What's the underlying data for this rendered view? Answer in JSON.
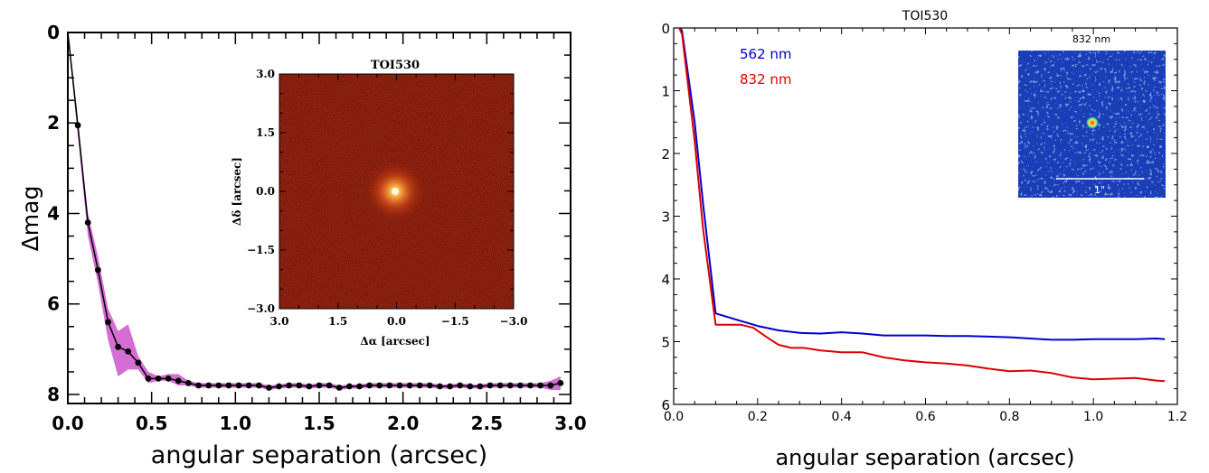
{
  "chart_data": [
    {
      "type": "line",
      "xlabel": "angular separation (arcsec)",
      "ylabel": "Δmag",
      "xlim": [
        0,
        3.0
      ],
      "ylim": [
        8.2,
        0
      ],
      "xticks": [
        0.0,
        0.5,
        1.0,
        1.5,
        2.0,
        2.5,
        3.0
      ],
      "xtick_labels": [
        "0.0",
        "0.5",
        "1.0",
        "1.5",
        "2.0",
        "2.5",
        "3.0"
      ],
      "yticks": [
        0,
        2,
        4,
        6,
        8
      ],
      "ytick_labels": [
        "0",
        "2",
        "4",
        "6",
        "8"
      ],
      "band_color": "#cc55cc",
      "line_color": "#000000",
      "x": [
        0.0,
        0.06,
        0.12,
        0.18,
        0.24,
        0.3,
        0.36,
        0.42,
        0.48,
        0.54,
        0.6,
        0.66,
        0.72,
        0.78,
        0.84,
        0.9,
        0.96,
        1.02,
        1.08,
        1.14,
        1.2,
        1.26,
        1.32,
        1.38,
        1.44,
        1.5,
        1.56,
        1.62,
        1.68,
        1.74,
        1.8,
        1.86,
        1.92,
        1.98,
        2.04,
        2.1,
        2.16,
        2.22,
        2.28,
        2.34,
        2.4,
        2.46,
        2.52,
        2.58,
        2.64,
        2.7,
        2.76,
        2.82,
        2.88,
        2.94
      ],
      "y": [
        0.0,
        2.05,
        4.2,
        5.25,
        6.4,
        6.95,
        7.05,
        7.3,
        7.65,
        7.65,
        7.65,
        7.7,
        7.75,
        7.8,
        7.8,
        7.8,
        7.8,
        7.8,
        7.8,
        7.8,
        7.85,
        7.82,
        7.8,
        7.8,
        7.82,
        7.8,
        7.8,
        7.85,
        7.82,
        7.82,
        7.8,
        7.8,
        7.8,
        7.8,
        7.8,
        7.8,
        7.8,
        7.82,
        7.82,
        7.8,
        7.82,
        7.82,
        7.8,
        7.8,
        7.8,
        7.8,
        7.8,
        7.8,
        7.8,
        7.75
      ],
      "band_upper": [
        0.0,
        1.95,
        4.0,
        4.95,
        6.1,
        6.6,
        6.45,
        7.15,
        7.5,
        7.6,
        7.55,
        7.55,
        7.7,
        7.75,
        7.75,
        7.75,
        7.75,
        7.75,
        7.75,
        7.75,
        7.8,
        7.78,
        7.75,
        7.75,
        7.78,
        7.75,
        7.75,
        7.8,
        7.78,
        7.78,
        7.75,
        7.75,
        7.75,
        7.75,
        7.75,
        7.75,
        7.75,
        7.78,
        7.78,
        7.75,
        7.78,
        7.78,
        7.75,
        7.75,
        7.75,
        7.75,
        7.75,
        7.75,
        7.7,
        7.6
      ],
      "band_lower": [
        0.1,
        2.3,
        4.5,
        5.55,
        6.8,
        7.6,
        7.45,
        7.45,
        7.75,
        7.7,
        7.7,
        7.8,
        7.8,
        7.85,
        7.85,
        7.85,
        7.85,
        7.85,
        7.85,
        7.85,
        7.9,
        7.87,
        7.85,
        7.85,
        7.87,
        7.85,
        7.85,
        7.9,
        7.87,
        7.87,
        7.85,
        7.85,
        7.85,
        7.85,
        7.85,
        7.85,
        7.85,
        7.87,
        7.87,
        7.85,
        7.87,
        7.87,
        7.85,
        7.85,
        7.85,
        7.85,
        7.85,
        7.85,
        7.9,
        7.9
      ],
      "inset": {
        "title": "TOI530",
        "xlabel": "Δα [arcsec]",
        "ylabel": "Δδ [arcsec]",
        "xlim": [
          3.0,
          -3.0
        ],
        "ylim": [
          -3.0,
          3.0
        ],
        "xtick_labels": [
          "3.0",
          "1.5",
          "0.0",
          "−1.5",
          "−3.0"
        ],
        "ytick_labels": [
          "3.0",
          "1.5",
          "0.0",
          "−1.5",
          "−3.0"
        ],
        "background_color": "#7a1608",
        "source_color": "#ffd070"
      }
    },
    {
      "type": "line",
      "title": "TOI530",
      "xlabel": "angular separation (arcsec)",
      "ylabel": "",
      "xlim": [
        0,
        1.2
      ],
      "ylim": [
        6,
        0
      ],
      "xtick_labels": [
        "0.0",
        "0.2",
        "0.4",
        "0.6",
        "0.8",
        "1.0",
        "1.2"
      ],
      "ytick_labels": [
        "0",
        "1",
        "2",
        "3",
        "4",
        "5",
        "6"
      ],
      "legend_placement": "upper-left",
      "series": [
        {
          "name": "562 nm",
          "color": "#0000cc",
          "x": [
            0.0,
            0.02,
            0.05,
            0.07,
            0.1,
            0.15,
            0.2,
            0.25,
            0.3,
            0.35,
            0.4,
            0.45,
            0.5,
            0.55,
            0.6,
            0.65,
            0.7,
            0.75,
            0.8,
            0.85,
            0.9,
            0.95,
            1.0,
            1.05,
            1.1,
            1.15,
            1.17
          ],
          "y": [
            -0.2,
            0.05,
            1.5,
            2.8,
            4.55,
            4.65,
            4.75,
            4.82,
            4.86,
            4.87,
            4.85,
            4.87,
            4.9,
            4.9,
            4.9,
            4.91,
            4.91,
            4.92,
            4.93,
            4.95,
            4.97,
            4.97,
            4.96,
            4.96,
            4.96,
            4.95,
            4.96
          ]
        },
        {
          "name": "832 nm",
          "color": "#dd0000",
          "x": [
            0.0,
            0.02,
            0.05,
            0.07,
            0.1,
            0.13,
            0.16,
            0.19,
            0.22,
            0.25,
            0.28,
            0.31,
            0.35,
            0.4,
            0.45,
            0.5,
            0.55,
            0.6,
            0.65,
            0.7,
            0.75,
            0.8,
            0.85,
            0.9,
            0.95,
            1.0,
            1.05,
            1.1,
            1.15,
            1.17
          ],
          "y": [
            -0.2,
            0.1,
            1.8,
            3.2,
            4.73,
            4.73,
            4.73,
            4.78,
            4.92,
            5.05,
            5.1,
            5.1,
            5.14,
            5.17,
            5.17,
            5.25,
            5.3,
            5.33,
            5.35,
            5.38,
            5.43,
            5.47,
            5.46,
            5.5,
            5.57,
            5.6,
            5.59,
            5.58,
            5.62,
            5.63
          ]
        }
      ],
      "inset": {
        "title": "832 nm",
        "scale_label": "1\"",
        "background_color": "#1c3db8",
        "speckle_color": "#5ec8e8",
        "source_color": "#ff3020"
      }
    }
  ]
}
